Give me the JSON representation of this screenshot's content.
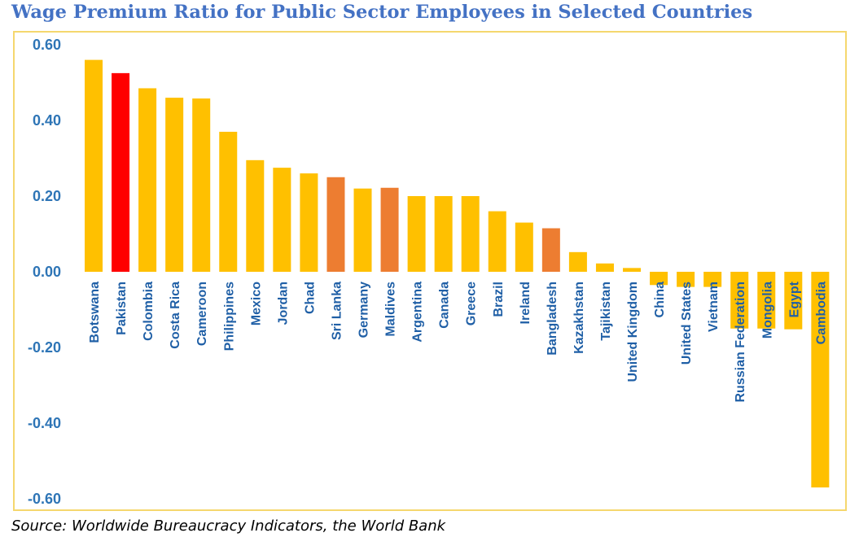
{
  "title": "Wage Premium Ratio for Public Sector Employees in Selected Countries",
  "source": "Source: Worldwide Bureaucracy Indicators, the World Bank",
  "colors": {
    "title": "#4472c4",
    "tick_label": "#2e75b6",
    "category_label": "#1f5fa6",
    "frame": "#f5d76e",
    "default_bar": "#ffc000",
    "highlight_red": "#ff0000",
    "highlight_orange": "#ed7d31"
  },
  "chart_data": {
    "type": "bar",
    "title": "Wage Premium Ratio for Public Sector Employees in Selected Countries",
    "xlabel": "",
    "ylabel": "",
    "ylim": [
      -0.6,
      0.6
    ],
    "yticks": [
      "0.60",
      "0.40",
      "0.20",
      "0.00",
      "-0.20",
      "-0.40",
      "-0.60"
    ],
    "grid": false,
    "legend": "none",
    "categories": [
      "Botswana",
      "Pakistan",
      "Colombia",
      "Costa Rica",
      "Cameroon",
      "Philippines",
      "Mexico",
      "Jordan",
      "Chad",
      "Sri Lanka",
      "Germany",
      "Maldives",
      "Argentina",
      "Canada",
      "Greece",
      "Brazil",
      "Ireland",
      "Bangladesh",
      "Kazakhstan",
      "Tajikistan",
      "United Kingdom",
      "China",
      "United States",
      "Vietnam",
      "Russian Federation",
      "Mongolia",
      "Egypt",
      "Cambodia"
    ],
    "values": [
      0.56,
      0.525,
      0.485,
      0.46,
      0.458,
      0.37,
      0.295,
      0.275,
      0.26,
      0.25,
      0.22,
      0.222,
      0.2,
      0.2,
      0.2,
      0.16,
      0.13,
      0.115,
      0.052,
      0.022,
      0.01,
      -0.035,
      -0.04,
      -0.04,
      -0.15,
      -0.15,
      -0.152,
      -0.57
    ],
    "bar_colors": [
      "#ffc000",
      "#ff0000",
      "#ffc000",
      "#ffc000",
      "#ffc000",
      "#ffc000",
      "#ffc000",
      "#ffc000",
      "#ffc000",
      "#ed7d31",
      "#ffc000",
      "#ed7d31",
      "#ffc000",
      "#ffc000",
      "#ffc000",
      "#ffc000",
      "#ffc000",
      "#ed7d31",
      "#ffc000",
      "#ffc000",
      "#ffc000",
      "#ffc000",
      "#ffc000",
      "#ffc000",
      "#ffc000",
      "#ffc000",
      "#ffc000",
      "#ffc000"
    ]
  }
}
